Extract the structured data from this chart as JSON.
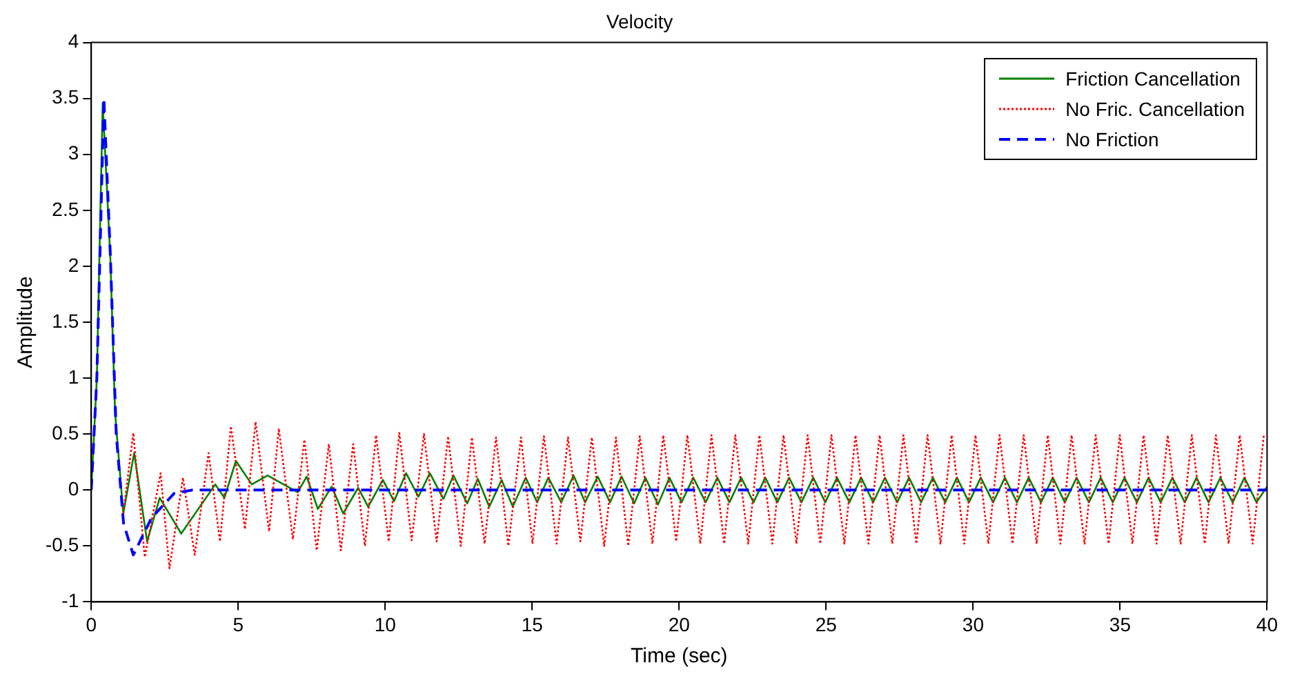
{
  "chart_data": {
    "type": "line",
    "title": "Velocity",
    "xlabel": "Time (sec)",
    "ylabel": "Amplitude",
    "xlim": [
      0,
      40
    ],
    "xticks": [
      0,
      5,
      10,
      15,
      20,
      25,
      30,
      35,
      40
    ],
    "ylim": [
      -1,
      4
    ],
    "yticks": [
      -1,
      -0.5,
      0,
      0.5,
      1,
      1.5,
      2,
      2.5,
      3,
      3.5,
      4
    ],
    "grid": false,
    "legend": "top right",
    "marker": "none",
    "series": [
      {
        "name": "Friction Cancellation",
        "color": "#008000",
        "line_style": "solid",
        "x": [
          0,
          0.19,
          0.39,
          0.65,
          0.81,
          1.09,
          1.46,
          1.9,
          2.33,
          3.06,
          4.22,
          4.53,
          4.92,
          5.46,
          6.0,
          7.02,
          7.33,
          7.71,
          8.18,
          8.57,
          9.08,
          9.42,
          9.92,
          10.3,
          10.71,
          11.13,
          11.52,
          11.98,
          12.32,
          12.79,
          13.15,
          13.54,
          13.96,
          14.34,
          14.78,
          15.17,
          15.55,
          15.99,
          16.41,
          16.8,
          17.23,
          17.65,
          18.04,
          18.47,
          18.85,
          19.28,
          19.67,
          20.08,
          20.48,
          20.9,
          21.3,
          21.71,
          22.11,
          22.53,
          22.93,
          23.34,
          23.74,
          24.16,
          24.56,
          24.97,
          25.37,
          25.79,
          26.19,
          26.6,
          27.0,
          27.42,
          27.82,
          28.23,
          28.63,
          29.05,
          29.45,
          29.86,
          30.26,
          30.68,
          31.08,
          31.49,
          31.89,
          32.31,
          32.71,
          33.12,
          33.52,
          33.94,
          34.34,
          34.75,
          35.15,
          35.57,
          35.97,
          36.38,
          36.78,
          37.2,
          37.6,
          38.01,
          38.41,
          38.83,
          39.23,
          39.64,
          40
        ],
        "values": [
          0,
          1.0,
          3.46,
          2.07,
          0.69,
          -0.21,
          0.33,
          -0.46,
          -0.07,
          -0.39,
          0.05,
          -0.07,
          0.26,
          0.05,
          0.13,
          -0.02,
          0.12,
          -0.17,
          0.03,
          -0.21,
          0.02,
          -0.15,
          0.09,
          -0.1,
          0.15,
          -0.06,
          0.15,
          -0.08,
          0.13,
          -0.12,
          0.1,
          -0.15,
          0.09,
          -0.15,
          0.11,
          -0.11,
          0.11,
          -0.11,
          0.13,
          -0.11,
          0.12,
          -0.11,
          0.12,
          -0.12,
          0.11,
          -0.13,
          0.11,
          -0.11,
          0.11,
          -0.11,
          0.11,
          -0.11,
          0.11,
          -0.11,
          0.11,
          -0.11,
          0.11,
          -0.11,
          0.11,
          -0.11,
          0.11,
          -0.11,
          0.11,
          -0.11,
          0.11,
          -0.11,
          0.11,
          -0.11,
          0.11,
          -0.11,
          0.11,
          -0.11,
          0.11,
          -0.11,
          0.11,
          -0.11,
          0.11,
          -0.11,
          0.11,
          -0.11,
          0.11,
          -0.11,
          0.11,
          -0.11,
          0.11,
          -0.11,
          0.11,
          -0.11,
          0.11,
          -0.11,
          0.11,
          -0.11,
          0.11,
          -0.11,
          0.11,
          -0.11,
          0.03
        ]
      },
      {
        "name": "No Fric. Cancellation",
        "color": "#ff0000",
        "line_style": "dotted",
        "x": [
          1.09,
          1.43,
          1.82,
          2.36,
          2.66,
          3.12,
          3.52,
          3.99,
          4.38,
          4.75,
          5.23,
          5.59,
          6.05,
          6.38,
          6.86,
          7.25,
          7.67,
          8.08,
          8.49,
          8.91,
          9.31,
          9.69,
          10.12,
          10.48,
          10.9,
          11.32,
          11.75,
          12.14,
          12.57,
          12.95,
          13.38,
          13.77,
          14.19,
          14.62,
          15.01,
          15.4,
          15.83,
          16.22,
          16.64,
          17.03,
          17.45,
          17.85,
          18.27,
          18.66,
          19.09,
          19.46,
          19.9,
          20.28,
          20.72,
          21.1,
          21.53,
          21.91,
          22.35,
          22.73,
          23.17,
          23.55,
          23.99,
          24.37,
          24.8,
          25.18,
          25.62,
          26.0,
          26.44,
          26.82,
          27.25,
          27.63,
          28.07,
          28.45,
          28.89,
          29.27,
          29.7,
          30.08,
          30.52,
          30.9,
          31.34,
          31.72,
          32.16,
          32.54,
          32.97,
          33.35,
          33.79,
          34.17,
          34.61,
          34.99,
          35.42,
          35.8,
          36.24,
          36.62,
          37.06,
          37.44,
          37.88,
          38.26,
          38.69,
          39.07,
          39.51,
          39.89
        ],
        "values": [
          -0.21,
          0.51,
          -0.6,
          0.15,
          -0.7,
          0.11,
          -0.58,
          0.33,
          -0.46,
          0.57,
          -0.35,
          0.61,
          -0.37,
          0.55,
          -0.44,
          0.45,
          -0.54,
          0.41,
          -0.54,
          0.41,
          -0.5,
          0.49,
          -0.46,
          0.51,
          -0.45,
          0.5,
          -0.46,
          0.48,
          -0.5,
          0.47,
          -0.48,
          0.47,
          -0.5,
          0.47,
          -0.48,
          0.48,
          -0.48,
          0.47,
          -0.46,
          0.47,
          -0.5,
          0.47,
          -0.5,
          0.48,
          -0.48,
          0.49,
          -0.46,
          0.49,
          -0.48,
          0.49,
          -0.48,
          0.49,
          -0.48,
          0.49,
          -0.48,
          0.49,
          -0.48,
          0.49,
          -0.48,
          0.49,
          -0.48,
          0.49,
          -0.48,
          0.49,
          -0.48,
          0.49,
          -0.48,
          0.49,
          -0.48,
          0.49,
          -0.48,
          0.49,
          -0.48,
          0.49,
          -0.48,
          0.49,
          -0.48,
          0.49,
          -0.48,
          0.49,
          -0.48,
          0.49,
          -0.48,
          0.49,
          -0.48,
          0.49,
          -0.48,
          0.49,
          -0.48,
          0.49,
          -0.48,
          0.49,
          -0.48,
          0.49,
          -0.48,
          0.49
        ]
      },
      {
        "name": "No Friction",
        "color": "#0000ff",
        "line_style": "dashed",
        "x": [
          0,
          0.19,
          0.43,
          0.65,
          0.85,
          1.1,
          1.43,
          2.05,
          2.82,
          3.45,
          40
        ],
        "values": [
          0,
          1.0,
          3.5,
          2.1,
          0.5,
          -0.3,
          -0.58,
          -0.25,
          -0.03,
          0,
          0
        ]
      }
    ]
  }
}
